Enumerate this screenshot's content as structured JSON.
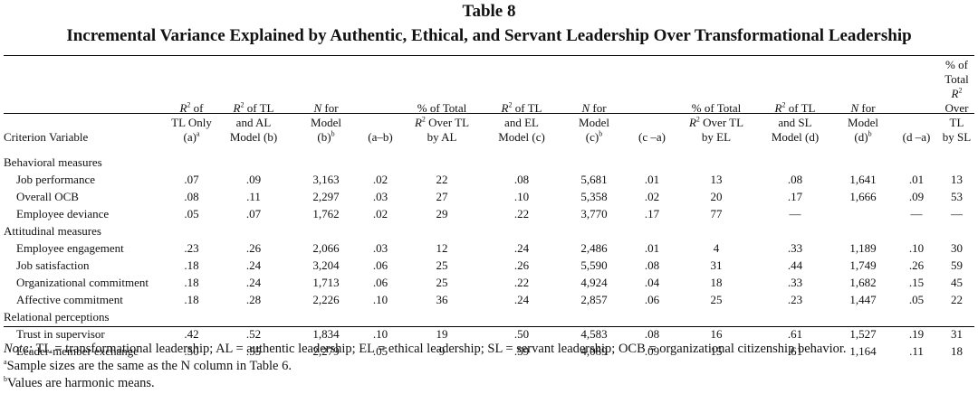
{
  "table_number": "Table 8",
  "table_title": "Incremental Variance Explained by Authentic, Ethical, and Servant Leadership Over Transformational Leadership",
  "headers": {
    "criterion": "Criterion Variable",
    "tl_only": {
      "l1": "of",
      "l2": "TL Only",
      "l3": "(a)"
    },
    "tl_al": {
      "l1": "of TL",
      "l2": "and AL",
      "l3": "Model (b)"
    },
    "n_al": {
      "l1": "for",
      "l2": "Model",
      "l3": "(b)"
    },
    "ba": "(a–b)",
    "pct_al": {
      "l1": "% of Total",
      "l2": "Over TL",
      "l3": "by AL"
    },
    "tl_el": {
      "l1": "of TL",
      "l2": "and EL",
      "l3": "Model (c)"
    },
    "n_el": {
      "l1": "for",
      "l2": "Model",
      "l3": "(c)"
    },
    "ca": "(c –a)",
    "pct_el": {
      "l1": "% of Total",
      "l2": "Over TL",
      "l3": "by EL"
    },
    "tl_sl": {
      "l1": "of TL",
      "l2": "and SL",
      "l3": "Model (d)"
    },
    "n_sl": {
      "l1": "for",
      "l2": "Model",
      "l3": "(d)"
    },
    "da": "(d –a)",
    "pct_sl": {
      "l1": "% of Total",
      "l2": "Over TL",
      "l3": "by SL"
    },
    "r2": "R",
    "sq": "2",
    "n": "N",
    "sup_a": "a",
    "sup_b": "b"
  },
  "sections": [
    {
      "title": "Behavioral measures",
      "rows": [
        {
          "label": "Job performance",
          "v": [
            ".07",
            ".09",
            "3,163",
            ".02",
            "22",
            ".08",
            "5,681",
            ".01",
            "13",
            ".08",
            "1,641",
            ".01",
            "13"
          ]
        },
        {
          "label": "Overall OCB",
          "v": [
            ".08",
            ".11",
            "2,297",
            ".03",
            "27",
            ".10",
            "5,358",
            ".02",
            "20",
            ".17",
            "1,666",
            ".09",
            "53"
          ]
        },
        {
          "label": "Employee deviance",
          "v": [
            ".05",
            ".07",
            "1,762",
            ".02",
            "29",
            ".22",
            "3,770",
            ".17",
            "77",
            "—",
            "",
            "—",
            "—"
          ]
        }
      ]
    },
    {
      "title": "Attitudinal measures",
      "rows": [
        {
          "label": "Employee engagement",
          "v": [
            ".23",
            ".26",
            "2,066",
            ".03",
            "12",
            ".24",
            "2,486",
            ".01",
            "4",
            ".33",
            "1,189",
            ".10",
            "30"
          ]
        },
        {
          "label": "Job satisfaction",
          "v": [
            ".18",
            ".24",
            "3,204",
            ".06",
            "25",
            ".26",
            "5,590",
            ".08",
            "31",
            ".44",
            "1,749",
            ".26",
            "59"
          ]
        },
        {
          "label": "Organizational commitment",
          "v": [
            ".18",
            ".24",
            "1,713",
            ".06",
            "25",
            ".22",
            "4,924",
            ".04",
            "18",
            ".33",
            "1,682",
            ".15",
            "45"
          ]
        },
        {
          "label": "Affective commitment",
          "v": [
            ".18",
            ".28",
            "2,226",
            ".10",
            "36",
            ".24",
            "2,857",
            ".06",
            "25",
            ".23",
            "1,447",
            ".05",
            "22"
          ]
        }
      ]
    },
    {
      "title": "Relational perceptions",
      "rows": [
        {
          "label": "Trust in supervisor",
          "v": [
            ".42",
            ".52",
            "1,834",
            ".10",
            "19",
            ".50",
            "4,583",
            ".08",
            "16",
            ".61",
            "1,527",
            ".19",
            "31"
          ]
        },
        {
          "label": "Leader-member exchange",
          "v": [
            ".50",
            ".55",
            "2,279",
            ".05",
            "9",
            ".59",
            "4,089",
            ".09",
            "15",
            ".61",
            "1,164",
            ".11",
            "18"
          ]
        }
      ]
    }
  ],
  "notes": {
    "note_label": "Note:",
    "note_text": " TL = transformational leadership; AL = authentic leadership; EL = ethical leadership; SL = servant leadership; OCB = organizational citizenship behavior.",
    "a_mark": "a",
    "a_text": "Sample sizes are the same as the N column in Table 6.",
    "b_mark": "b",
    "b_text": "Values are harmonic means."
  }
}
